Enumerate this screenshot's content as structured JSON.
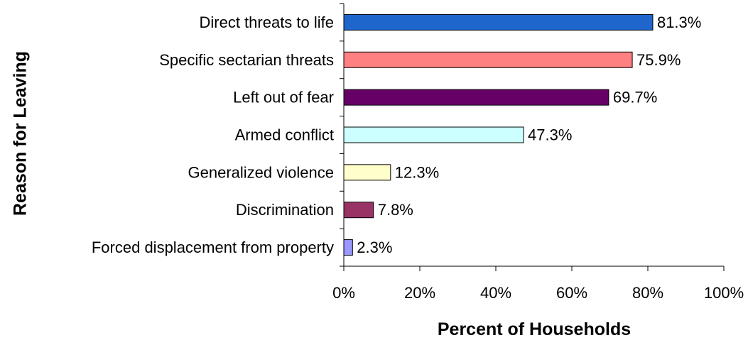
{
  "chart_data": {
    "type": "bar",
    "orientation": "horizontal",
    "title": "",
    "xlabel": "Percent of Households",
    "ylabel": "Reason for Leaving",
    "xlim": [
      0,
      100
    ],
    "x_ticks": [
      "0%",
      "20%",
      "40%",
      "60%",
      "80%",
      "100%"
    ],
    "grid": false,
    "legend": false,
    "categories": [
      "Direct threats to life",
      "Specific sectarian threats",
      "Left out of fear",
      "Armed conflict",
      "Generalized violence",
      "Discrimination",
      "Forced displacement from property"
    ],
    "values": [
      81.3,
      75.9,
      69.7,
      47.3,
      12.3,
      7.8,
      2.3
    ],
    "value_labels": [
      "81.3%",
      "75.9%",
      "69.7%",
      "47.3%",
      "12.3%",
      "7.8%",
      "2.3%"
    ],
    "colors": [
      "#1F66CC",
      "#FF8080",
      "#660066",
      "#CCFFFF",
      "#FFFFCC",
      "#993366",
      "#9999FF"
    ]
  }
}
